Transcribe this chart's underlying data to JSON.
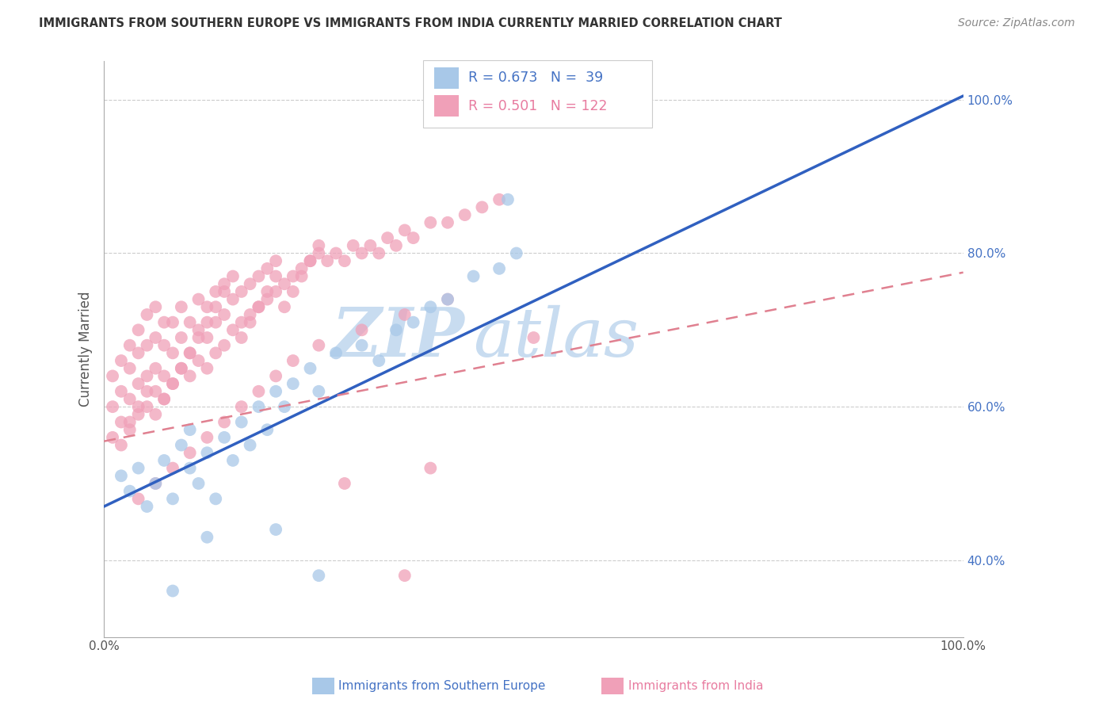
{
  "title": "IMMIGRANTS FROM SOUTHERN EUROPE VS IMMIGRANTS FROM INDIA CURRENTLY MARRIED CORRELATION CHART",
  "source": "Source: ZipAtlas.com",
  "ylabel": "Currently Married",
  "y_ticks": [
    0.4,
    0.6,
    0.8,
    1.0
  ],
  "y_tick_labels": [
    "40.0%",
    "60.0%",
    "80.0%",
    "100.0%"
  ],
  "x_ticks": [
    0.0,
    1.0
  ],
  "x_tick_labels": [
    "0.0%",
    "100.0%"
  ],
  "legend_label1": "Immigrants from Southern Europe",
  "legend_label2": "Immigrants from India",
  "legend_R1": "R = 0.673",
  "legend_N1": "N =  39",
  "legend_R2": "R = 0.501",
  "legend_N2": "N = 122",
  "color_blue_scatter": "#A8C8E8",
  "color_pink_scatter": "#F0A0B8",
  "color_blue_line": "#3060C0",
  "color_pink_line": "#E08090",
  "color_axis_labels": "#4472C4",
  "color_title": "#333333",
  "color_source": "#888888",
  "color_legend_text1": "#4472C4",
  "color_legend_text2": "#E87CA0",
  "watermark_zip": "ZIP",
  "watermark_atlas": "atlas",
  "color_watermark": "#C8DCF0",
  "xlim": [
    0.0,
    1.0
  ],
  "ylim": [
    0.3,
    1.05
  ],
  "blue_line_y0": 0.47,
  "blue_line_y1": 1.005,
  "pink_line_y0": 0.555,
  "pink_line_y1": 0.775,
  "blue_scatter_x": [
    0.02,
    0.03,
    0.04,
    0.05,
    0.06,
    0.07,
    0.08,
    0.09,
    0.1,
    0.1,
    0.11,
    0.12,
    0.13,
    0.14,
    0.15,
    0.16,
    0.17,
    0.18,
    0.19,
    0.2,
    0.21,
    0.22,
    0.24,
    0.25,
    0.27,
    0.3,
    0.32,
    0.34,
    0.36,
    0.38,
    0.4,
    0.43,
    0.46,
    0.48,
    0.12,
    0.2,
    0.25,
    0.08,
    0.47
  ],
  "blue_scatter_y": [
    0.51,
    0.49,
    0.52,
    0.47,
    0.5,
    0.53,
    0.48,
    0.55,
    0.52,
    0.57,
    0.5,
    0.54,
    0.48,
    0.56,
    0.53,
    0.58,
    0.55,
    0.6,
    0.57,
    0.62,
    0.6,
    0.63,
    0.65,
    0.62,
    0.67,
    0.68,
    0.66,
    0.7,
    0.71,
    0.73,
    0.74,
    0.77,
    0.78,
    0.8,
    0.43,
    0.44,
    0.38,
    0.36,
    0.87
  ],
  "pink_scatter_x": [
    0.01,
    0.01,
    0.01,
    0.02,
    0.02,
    0.02,
    0.03,
    0.03,
    0.03,
    0.03,
    0.04,
    0.04,
    0.04,
    0.04,
    0.05,
    0.05,
    0.05,
    0.05,
    0.06,
    0.06,
    0.06,
    0.06,
    0.07,
    0.07,
    0.07,
    0.07,
    0.08,
    0.08,
    0.08,
    0.09,
    0.09,
    0.09,
    0.1,
    0.1,
    0.1,
    0.11,
    0.11,
    0.11,
    0.12,
    0.12,
    0.12,
    0.13,
    0.13,
    0.13,
    0.14,
    0.14,
    0.14,
    0.15,
    0.15,
    0.16,
    0.16,
    0.17,
    0.17,
    0.18,
    0.18,
    0.19,
    0.19,
    0.2,
    0.2,
    0.21,
    0.22,
    0.23,
    0.24,
    0.25,
    0.26,
    0.27,
    0.28,
    0.29,
    0.3,
    0.31,
    0.32,
    0.33,
    0.34,
    0.35,
    0.36,
    0.38,
    0.4,
    0.42,
    0.44,
    0.46,
    0.02,
    0.03,
    0.04,
    0.05,
    0.06,
    0.07,
    0.08,
    0.09,
    0.1,
    0.11,
    0.12,
    0.13,
    0.14,
    0.15,
    0.16,
    0.17,
    0.18,
    0.19,
    0.2,
    0.21,
    0.22,
    0.23,
    0.24,
    0.25,
    0.04,
    0.06,
    0.08,
    0.1,
    0.12,
    0.14,
    0.16,
    0.18,
    0.2,
    0.22,
    0.25,
    0.3,
    0.35,
    0.4,
    0.28,
    0.38,
    0.35,
    0.5
  ],
  "pink_scatter_y": [
    0.56,
    0.6,
    0.64,
    0.58,
    0.62,
    0.66,
    0.57,
    0.61,
    0.65,
    0.68,
    0.59,
    0.63,
    0.67,
    0.7,
    0.6,
    0.64,
    0.68,
    0.72,
    0.62,
    0.65,
    0.69,
    0.73,
    0.61,
    0.64,
    0.68,
    0.71,
    0.63,
    0.67,
    0.71,
    0.65,
    0.69,
    0.73,
    0.64,
    0.67,
    0.71,
    0.66,
    0.7,
    0.74,
    0.65,
    0.69,
    0.73,
    0.67,
    0.71,
    0.75,
    0.68,
    0.72,
    0.76,
    0.7,
    0.74,
    0.71,
    0.75,
    0.72,
    0.76,
    0.73,
    0.77,
    0.74,
    0.78,
    0.75,
    0.79,
    0.76,
    0.77,
    0.78,
    0.79,
    0.8,
    0.79,
    0.8,
    0.79,
    0.81,
    0.8,
    0.81,
    0.8,
    0.82,
    0.81,
    0.83,
    0.82,
    0.84,
    0.84,
    0.85,
    0.86,
    0.87,
    0.55,
    0.58,
    0.6,
    0.62,
    0.59,
    0.61,
    0.63,
    0.65,
    0.67,
    0.69,
    0.71,
    0.73,
    0.75,
    0.77,
    0.69,
    0.71,
    0.73,
    0.75,
    0.77,
    0.73,
    0.75,
    0.77,
    0.79,
    0.81,
    0.48,
    0.5,
    0.52,
    0.54,
    0.56,
    0.58,
    0.6,
    0.62,
    0.64,
    0.66,
    0.68,
    0.7,
    0.72,
    0.74,
    0.5,
    0.52,
    0.38,
    0.69
  ]
}
